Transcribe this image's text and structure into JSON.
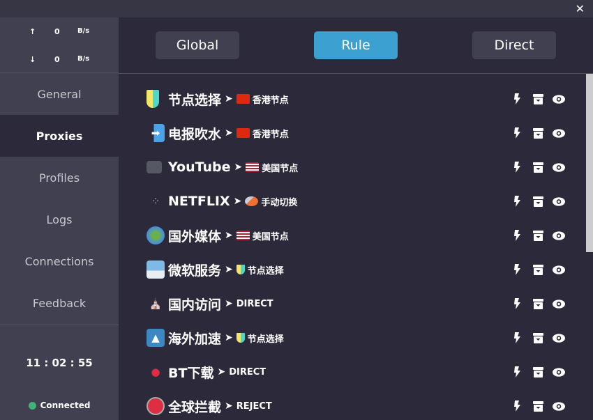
{
  "window": {
    "close_icon": "✕"
  },
  "traffic": {
    "up_icon": "↑",
    "up_value": "0",
    "up_unit": "B/s",
    "down_icon": "↓",
    "down_value": "0",
    "down_unit": "B/s"
  },
  "nav": [
    {
      "label": "General"
    },
    {
      "label": "Proxies",
      "active": true
    },
    {
      "label": "Profiles"
    },
    {
      "label": "Logs"
    },
    {
      "label": "Connections"
    },
    {
      "label": "Feedback"
    }
  ],
  "clock": "11 : 02 : 55",
  "status": {
    "label": "Connected",
    "color": "#3db378"
  },
  "modes": [
    {
      "label": "Global"
    },
    {
      "label": "Rule",
      "active": true
    },
    {
      "label": "Direct"
    }
  ],
  "accent": "#3ca0d0",
  "groups": [
    {
      "icon": "beginner-icon",
      "name": "节点选择",
      "target": "香港节点",
      "target_icon": "hk-flag"
    },
    {
      "icon": "inbox-arrow-icon",
      "name": "电报吹水",
      "target": "香港节点",
      "target_icon": "hk-flag"
    },
    {
      "icon": "camera-icon",
      "name": "YouTube",
      "target": "美国节点",
      "target_icon": "us-flag"
    },
    {
      "icon": "film-icon",
      "name": "NETFLIX",
      "target": "手动切换",
      "target_icon": "rocket"
    },
    {
      "icon": "globe-icon",
      "name": "国外媒体",
      "target": "美国节点",
      "target_icon": "us-flag"
    },
    {
      "icon": "city-icon",
      "name": "微软服务",
      "target": "节点选择",
      "target_icon": "beginner"
    },
    {
      "icon": "church-icon",
      "name": "国内访问",
      "target": "DIRECT",
      "target_icon": ""
    },
    {
      "icon": "triangle-icon",
      "name": "海外加速",
      "target": "节点选择",
      "target_icon": "beginner"
    },
    {
      "icon": "pin-icon",
      "name": "BT下载",
      "target": "DIRECT",
      "target_icon": ""
    },
    {
      "icon": "stop-sign-icon",
      "name": "全球拦截",
      "target": "REJECT",
      "target_icon": ""
    }
  ],
  "row_separator": "➤"
}
